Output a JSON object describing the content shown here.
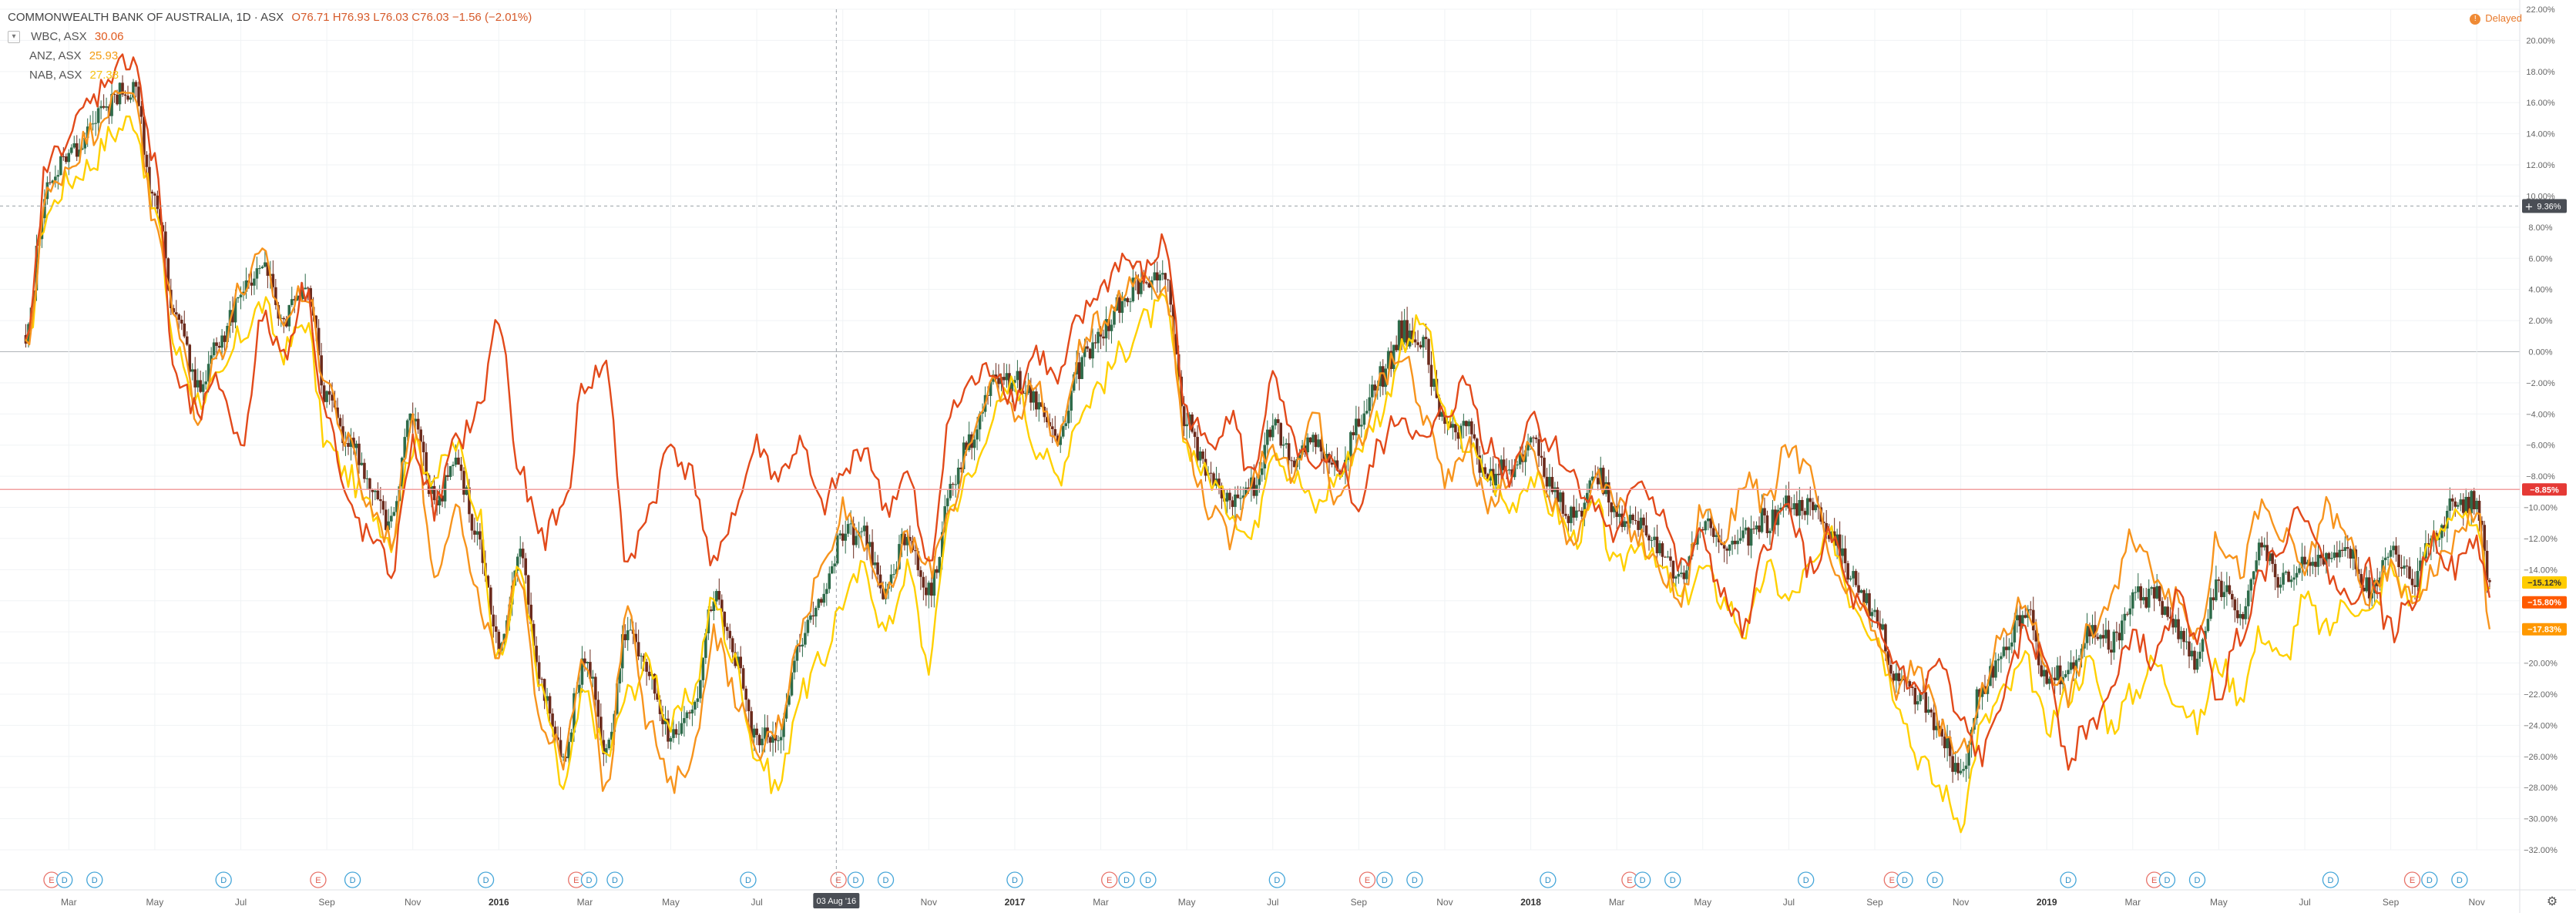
{
  "header": {
    "title": "COMMONWEALTH BANK OF AUSTRALIA",
    "interval": "1D",
    "exchange": "ASX",
    "ohlc": "O76.71 H76.93 L76.03 C76.03 −1.56 (−2.01%)",
    "delayed_label": "Delayed"
  },
  "legend": [
    {
      "symbol": "WBC, ASX",
      "value": "30.06",
      "color": "#e05a1e"
    },
    {
      "symbol": "ANZ, ASX",
      "value": "25.93",
      "color": "#f39c12"
    },
    {
      "symbol": "NAB, ASX",
      "value": "27.38",
      "color": "#f5c211"
    }
  ],
  "crosshair": {
    "date_label": "03 Aug '16",
    "value_label": "9.36%"
  },
  "colors": {
    "wbc": "#e24a1b",
    "anz": "#f7941d",
    "nab": "#ffd000",
    "candle_up": "#2e6b4a",
    "candle_down": "#6b2a1c",
    "grid": "#f0f3f5",
    "zero_line": "#b0b4b8",
    "last_price_line": "#f2a0a0"
  },
  "chart_data": {
    "type": "line",
    "ylim": [
      -32,
      22
    ],
    "y_ticks": [
      "22.00%",
      "20.00%",
      "18.00%",
      "16.00%",
      "14.00%",
      "12.00%",
      "10.00%",
      "8.00%",
      "6.00%",
      "4.00%",
      "2.00%",
      "0.00%",
      "−2.00%",
      "−4.00%",
      "−6.00%",
      "−8.00%",
      "−10.00%",
      "−12.00%",
      "−14.00%",
      "−16.00%",
      "−18.00%",
      "−20.00%",
      "−22.00%",
      "−24.00%",
      "−26.00%",
      "−28.00%",
      "−30.00%",
      "−32.00%"
    ],
    "x_ticks": [
      {
        "label": "Mar",
        "t": 1
      },
      {
        "label": "May",
        "t": 3
      },
      {
        "label": "Jul",
        "t": 5
      },
      {
        "label": "Sep",
        "t": 7
      },
      {
        "label": "Nov",
        "t": 9
      },
      {
        "label": "2016",
        "t": 11
      },
      {
        "label": "Mar",
        "t": 13
      },
      {
        "label": "May",
        "t": 15
      },
      {
        "label": "Jul",
        "t": 17
      },
      {
        "label": "Sep",
        "t": 19
      },
      {
        "label": "Nov",
        "t": 21
      },
      {
        "label": "2017",
        "t": 23
      },
      {
        "label": "Mar",
        "t": 25
      },
      {
        "label": "May",
        "t": 27
      },
      {
        "label": "Jul",
        "t": 29
      },
      {
        "label": "Sep",
        "t": 31
      },
      {
        "label": "Nov",
        "t": 33
      },
      {
        "label": "2018",
        "t": 35
      },
      {
        "label": "Mar",
        "t": 37
      },
      {
        "label": "May",
        "t": 39
      },
      {
        "label": "Jul",
        "t": 41
      },
      {
        "label": "Sep",
        "t": 43
      },
      {
        "label": "Nov",
        "t": 45
      },
      {
        "label": "2019",
        "t": 47
      },
      {
        "label": "Mar",
        "t": 49
      },
      {
        "label": "May",
        "t": 51
      },
      {
        "label": "Jul",
        "t": 53
      },
      {
        "label": "Sep",
        "t": 55
      },
      {
        "label": "Nov",
        "t": 57
      }
    ],
    "last_values": [
      {
        "label": "−8.85%",
        "value": -8.85,
        "color": "#e53935"
      },
      {
        "label": "−15.12%",
        "value": -15.12,
        "color": "#ffcc00",
        "text_color": "#333"
      },
      {
        "label": "−15.80%",
        "value": -15.8,
        "color": "#ff5a00"
      },
      {
        "label": "−17.83%",
        "value": -17.83,
        "color": "#ff9800"
      }
    ],
    "series": [
      {
        "key": "wbc",
        "x": [
          0,
          0.5,
          1,
          1.5,
          2,
          2.5,
          3,
          3.5,
          4,
          4.5,
          5,
          5.5,
          6,
          6.5,
          7,
          7.5,
          8,
          8.5,
          9,
          9.5,
          10,
          10.5,
          11,
          11.5,
          12,
          12.5,
          13,
          13.5,
          14,
          14.5,
          15,
          15.5,
          16,
          16.5,
          17,
          17.5,
          18,
          18.5,
          19,
          19.5,
          20,
          20.5,
          21,
          21.5,
          22,
          22.5,
          23,
          23.5,
          24,
          24.5,
          25,
          25.5,
          26,
          26.5,
          27,
          27.5,
          28,
          28.5,
          29,
          29.5,
          30,
          30.5,
          31,
          31.5,
          32,
          32.5,
          33,
          33.5,
          34,
          34.5,
          35,
          35.5,
          36,
          36.5,
          37,
          37.5,
          38,
          38.5,
          39,
          39.5,
          40,
          40.5,
          41,
          41.5,
          42,
          42.5,
          43,
          43.5,
          44,
          44.5,
          45,
          45.5,
          46,
          46.5,
          47,
          47.5,
          48,
          48.5,
          49,
          49.5,
          50,
          50.5,
          51,
          51.5,
          52,
          52.5,
          53,
          53.5,
          54,
          54.5,
          55,
          55.5,
          56,
          56.5,
          57,
          57.3
        ],
        "y": [
          0,
          12,
          14,
          16,
          18,
          19,
          12,
          -2,
          -4,
          -2,
          -6,
          2,
          0,
          4,
          -4,
          -10,
          -12,
          -14,
          -6,
          -10,
          -6,
          -4,
          2,
          -8,
          -12,
          -10,
          -2,
          -1,
          -14,
          -10,
          -6,
          -8,
          -14,
          -10,
          -6,
          -8,
          -6,
          -10,
          -8,
          -6,
          -10,
          -8,
          -14,
          -4,
          -2,
          -1,
          -3,
          0,
          -2,
          2,
          4,
          6,
          5,
          7,
          -4,
          -6,
          -4,
          -8,
          -2,
          -6,
          -8,
          -7,
          -10,
          -6,
          -4,
          -6,
          -4,
          -2,
          -6,
          -8,
          -4,
          -6,
          -8,
          -10,
          -12,
          -8,
          -10,
          -14,
          -12,
          -16,
          -18,
          -12,
          -10,
          -14,
          -12,
          -16,
          -18,
          -20,
          -22,
          -20,
          -24,
          -26,
          -22,
          -18,
          -20,
          -26,
          -24,
          -22,
          -18,
          -20,
          -16,
          -18,
          -22,
          -18,
          -14,
          -12,
          -10,
          -14,
          -16,
          -14,
          -18,
          -16,
          -12,
          -14,
          -12,
          -15.8
        ]
      },
      {
        "key": "anz",
        "x": [
          0,
          0.5,
          1,
          1.5,
          2,
          2.5,
          3,
          3.5,
          4,
          4.5,
          5,
          5.5,
          6,
          6.5,
          7,
          7.5,
          8,
          8.5,
          9,
          9.5,
          10,
          10.5,
          11,
          11.5,
          12,
          12.5,
          13,
          13.5,
          14,
          14.5,
          15,
          15.5,
          16,
          16.5,
          17,
          17.5,
          18,
          18.5,
          19,
          19.5,
          20,
          20.5,
          21,
          21.5,
          22,
          22.5,
          23,
          23.5,
          24,
          24.5,
          25,
          25.5,
          26,
          26.5,
          27,
          27.5,
          28,
          28.5,
          29,
          29.5,
          30,
          30.5,
          31,
          31.5,
          32,
          32.5,
          33,
          33.5,
          34,
          34.5,
          35,
          35.5,
          36,
          36.5,
          37,
          37.5,
          38,
          38.5,
          39,
          39.5,
          40,
          40.5,
          41,
          41.5,
          42,
          42.5,
          43,
          43.5,
          44,
          44.5,
          45,
          45.5,
          46,
          46.5,
          47,
          47.5,
          48,
          48.5,
          49,
          49.5,
          50,
          50.5,
          51,
          51.5,
          52,
          52.5,
          53,
          53.5,
          54,
          54.5,
          55,
          55.5,
          56,
          56.5,
          57,
          57.3
        ],
        "y": [
          0,
          10,
          12,
          14,
          16,
          17,
          8,
          2,
          -4,
          0,
          4,
          6,
          2,
          4,
          -2,
          -6,
          -10,
          -12,
          -4,
          -14,
          -10,
          -16,
          -20,
          -14,
          -24,
          -26,
          -20,
          -28,
          -16,
          -24,
          -28,
          -26,
          -18,
          -22,
          -26,
          -24,
          -18,
          -14,
          -10,
          -12,
          -16,
          -12,
          -14,
          -10,
          -6,
          -2,
          -4,
          -2,
          -6,
          0,
          2,
          4,
          5,
          4,
          -6,
          -10,
          -12,
          -8,
          -6,
          -8,
          -4,
          -10,
          -6,
          -2,
          0,
          -4,
          -8,
          -6,
          -10,
          -8,
          -6,
          -10,
          -12,
          -8,
          -10,
          -12,
          -14,
          -16,
          -10,
          -12,
          -8,
          -10,
          -6,
          -8,
          -14,
          -16,
          -18,
          -22,
          -20,
          -24,
          -26,
          -22,
          -18,
          -16,
          -20,
          -22,
          -18,
          -16,
          -12,
          -14,
          -16,
          -18,
          -12,
          -14,
          -10,
          -12,
          -14,
          -10,
          -12,
          -16,
          -14,
          -16,
          -14,
          -12,
          -10,
          -17.83
        ]
      },
      {
        "key": "nab",
        "x": [
          0,
          0.5,
          1,
          1.5,
          2,
          2.5,
          3,
          3.5,
          4,
          4.5,
          5,
          5.5,
          6,
          6.5,
          7,
          7.5,
          8,
          8.5,
          9,
          9.5,
          10,
          10.5,
          11,
          11.5,
          12,
          12.5,
          13,
          13.5,
          14,
          14.5,
          15,
          15.5,
          16,
          16.5,
          17,
          17.5,
          18,
          18.5,
          19,
          19.5,
          20,
          20.5,
          21,
          21.5,
          22,
          22.5,
          23,
          23.5,
          24,
          24.5,
          25,
          25.5,
          26,
          26.5,
          27,
          27.5,
          28,
          28.5,
          29,
          29.5,
          30,
          30.5,
          31,
          31.5,
          32,
          32.5,
          33,
          33.5,
          34,
          34.5,
          35,
          35.5,
          36,
          36.5,
          37,
          37.5,
          38,
          38.5,
          39,
          39.5,
          40,
          40.5,
          41,
          41.5,
          42,
          42.5,
          43,
          43.5,
          44,
          44.5,
          45,
          45.5,
          46,
          46.5,
          47,
          47.5,
          48,
          48.5,
          49,
          49.5,
          50,
          50.5,
          51,
          51.5,
          52,
          52.5,
          53,
          53.5,
          54,
          54.5,
          55,
          55.5,
          56,
          56.5,
          57,
          57.3
        ],
        "y": [
          0,
          9,
          11,
          12,
          14,
          15,
          9,
          0,
          -3,
          -2,
          1,
          3,
          0,
          2,
          -6,
          -8,
          -10,
          -12,
          -6,
          -8,
          -6,
          -10,
          -20,
          -14,
          -22,
          -28,
          -22,
          -26,
          -22,
          -20,
          -24,
          -22,
          -16,
          -20,
          -26,
          -28,
          -22,
          -20,
          -16,
          -14,
          -18,
          -14,
          -20,
          -10,
          -8,
          -4,
          -2,
          -6,
          -8,
          -4,
          -2,
          0,
          2,
          3,
          -6,
          -8,
          -10,
          -12,
          -6,
          -8,
          -10,
          -8,
          -6,
          -4,
          0,
          2,
          -4,
          -6,
          -8,
          -10,
          -8,
          -10,
          -12,
          -10,
          -14,
          -12,
          -14,
          -16,
          -14,
          -16,
          -18,
          -14,
          -16,
          -14,
          -12,
          -16,
          -18,
          -22,
          -26,
          -28,
          -30,
          -24,
          -22,
          -20,
          -24,
          -22,
          -20,
          -24,
          -22,
          -20,
          -22,
          -24,
          -20,
          -22,
          -18,
          -20,
          -16,
          -18,
          -16,
          -17,
          -14,
          -16,
          -12,
          -10,
          -12,
          -15.12
        ]
      }
    ]
  },
  "events": [
    {
      "type": "E",
      "t": 0.6
    },
    {
      "type": "D",
      "t": 0.9
    },
    {
      "type": "D",
      "t": 1.6
    },
    {
      "type": "D",
      "t": 4.6
    },
    {
      "type": "E",
      "t": 6.8
    },
    {
      "type": "D",
      "t": 7.6
    },
    {
      "type": "D",
      "t": 10.7
    },
    {
      "type": "E",
      "t": 12.8
    },
    {
      "type": "D",
      "t": 13.1
    },
    {
      "type": "D",
      "t": 13.7
    },
    {
      "type": "D",
      "t": 16.8
    },
    {
      "type": "E",
      "t": 18.9
    },
    {
      "type": "D",
      "t": 19.3
    },
    {
      "type": "D",
      "t": 20.0
    },
    {
      "type": "D",
      "t": 23.0
    },
    {
      "type": "E",
      "t": 25.2
    },
    {
      "type": "D",
      "t": 25.6
    },
    {
      "type": "D",
      "t": 26.1
    },
    {
      "type": "D",
      "t": 29.1
    },
    {
      "type": "E",
      "t": 31.2
    },
    {
      "type": "D",
      "t": 31.6
    },
    {
      "type": "D",
      "t": 32.3
    },
    {
      "type": "D",
      "t": 35.4
    },
    {
      "type": "E",
      "t": 37.3
    },
    {
      "type": "D",
      "t": 37.6
    },
    {
      "type": "D",
      "t": 38.3
    },
    {
      "type": "D",
      "t": 41.4
    },
    {
      "type": "E",
      "t": 43.4
    },
    {
      "type": "D",
      "t": 43.7
    },
    {
      "type": "D",
      "t": 44.4
    },
    {
      "type": "D",
      "t": 47.5
    },
    {
      "type": "E",
      "t": 49.5
    },
    {
      "type": "D",
      "t": 49.8
    },
    {
      "type": "D",
      "t": 50.5
    },
    {
      "type": "D",
      "t": 53.6
    },
    {
      "type": "E",
      "t": 55.5
    },
    {
      "type": "D",
      "t": 55.9
    },
    {
      "type": "D",
      "t": 56.6
    }
  ]
}
